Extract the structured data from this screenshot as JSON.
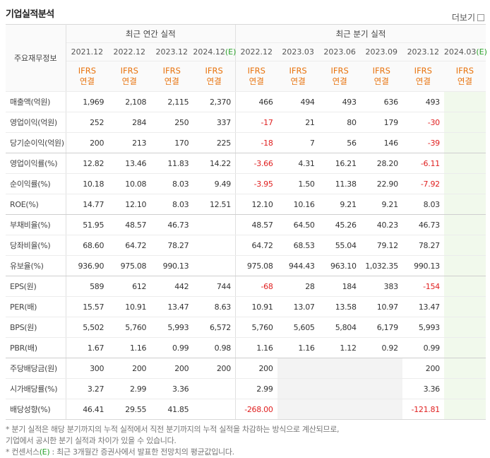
{
  "header": {
    "title": "기업실적분석",
    "more": "더보기"
  },
  "table": {
    "corner": "주요재무정보",
    "groups": [
      "최근 연간 실적",
      "최근 분기 실적"
    ],
    "periods": [
      {
        "date": "2021.12"
      },
      {
        "date": "2022.12"
      },
      {
        "date": "2023.12"
      },
      {
        "date": "2024.12",
        "est": "(E)"
      },
      {
        "date": "2022.12"
      },
      {
        "date": "2023.03"
      },
      {
        "date": "2023.06"
      },
      {
        "date": "2023.09"
      },
      {
        "date": "2023.12"
      },
      {
        "date": "2024.03",
        "est": "(E)"
      }
    ],
    "standards": [
      [
        "IFRS",
        "연결"
      ],
      [
        "IFRS",
        "연결"
      ],
      [
        "IFRS",
        "연결"
      ],
      [
        "IFRS",
        "연결"
      ],
      [
        "IFRS",
        "연결"
      ],
      [
        "IFRS",
        "연결"
      ],
      [
        "IFRS",
        "연결"
      ],
      [
        "IFRS",
        "연결"
      ],
      [
        "IFRS",
        "연결"
      ],
      [
        "IFRS",
        "연결"
      ]
    ],
    "rows": [
      {
        "label": "매출액(억원)",
        "values": [
          "1,969",
          "2,108",
          "2,115",
          "2,370",
          "466",
          "494",
          "493",
          "636",
          "493",
          null
        ]
      },
      {
        "label": "영업이익(억원)",
        "values": [
          "252",
          "284",
          "250",
          "337",
          "-17",
          "21",
          "80",
          "179",
          "-30",
          null
        ]
      },
      {
        "label": "당기순이익(억원)",
        "values": [
          "200",
          "213",
          "170",
          "225",
          "-18",
          "7",
          "56",
          "146",
          "-39",
          null
        ]
      },
      {
        "label": "영업이익률(%)",
        "values": [
          "12.82",
          "13.46",
          "11.83",
          "14.22",
          "-3.66",
          "4.31",
          "16.21",
          "28.20",
          "-6.11",
          null
        ]
      },
      {
        "label": "순이익률(%)",
        "values": [
          "10.18",
          "10.08",
          "8.03",
          "9.49",
          "-3.95",
          "1.50",
          "11.38",
          "22.90",
          "-7.92",
          null
        ]
      },
      {
        "label": "ROE(%)",
        "values": [
          "14.77",
          "12.10",
          "8.03",
          "12.51",
          "12.10",
          "10.16",
          "9.21",
          "9.21",
          "8.03",
          null
        ]
      },
      {
        "label": "부채비율(%)",
        "values": [
          "51.95",
          "48.57",
          "46.73",
          null,
          "48.57",
          "64.50",
          "45.26",
          "40.23",
          "46.73",
          null
        ]
      },
      {
        "label": "당좌비율(%)",
        "values": [
          "68.60",
          "64.72",
          "78.27",
          null,
          "64.72",
          "68.53",
          "55.04",
          "79.12",
          "78.27",
          null
        ]
      },
      {
        "label": "유보율(%)",
        "values": [
          "936.90",
          "975.08",
          "990.13",
          null,
          "975.08",
          "944.43",
          "963.10",
          "1,032.35",
          "990.13",
          null
        ]
      },
      {
        "label": "EPS(원)",
        "values": [
          "589",
          "612",
          "442",
          "744",
          "-68",
          "28",
          "184",
          "383",
          "-154",
          null
        ]
      },
      {
        "label": "PER(배)",
        "values": [
          "15.57",
          "10.91",
          "13.47",
          "8.63",
          "10.91",
          "13.07",
          "13.58",
          "10.97",
          "13.47",
          null
        ]
      },
      {
        "label": "BPS(원)",
        "values": [
          "5,502",
          "5,760",
          "5,993",
          "6,572",
          "5,760",
          "5,605",
          "5,804",
          "6,179",
          "5,993",
          null
        ]
      },
      {
        "label": "PBR(배)",
        "values": [
          "1.67",
          "1.16",
          "0.99",
          "0.98",
          "1.16",
          "1.16",
          "1.12",
          "0.92",
          "0.99",
          null
        ]
      },
      {
        "label": "주당배당금(원)",
        "values": [
          "300",
          "200",
          "200",
          "200",
          "200",
          null,
          null,
          null,
          "200",
          null
        ]
      },
      {
        "label": "시가배당률(%)",
        "values": [
          "3.27",
          "2.99",
          "3.36",
          null,
          "2.99",
          null,
          null,
          null,
          "3.36",
          null
        ]
      },
      {
        "label": "배당성향(%)",
        "values": [
          "46.41",
          "29.55",
          "41.85",
          null,
          "-268.00",
          null,
          null,
          null,
          "-121.81",
          null
        ]
      }
    ]
  },
  "notes": [
    {
      "lines": [
        "분기 실적은 해당 분기까지의 누적 실적에서 직전 분기까지의 누적 실적을 차감하는 방식으로 계산되므로,",
        "기업에서 공시한 분기 실적과 차이가 있을 수 있습니다."
      ]
    },
    {
      "term": "컨센서스",
      "est": "(E)",
      "text": " : 최근 3개월간 증권사에서 발표한 전망치의 평균값입니다."
    }
  ]
}
